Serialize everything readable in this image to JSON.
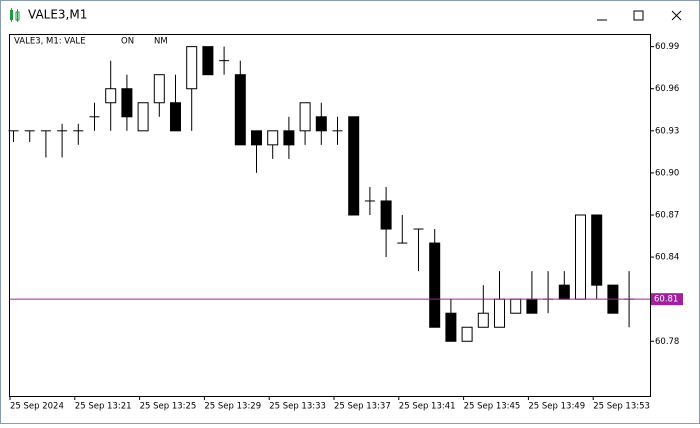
{
  "window": {
    "title": "VALE3,M1"
  },
  "chart_data": {
    "type": "candlestick",
    "title": "VALE3, M1:  VALE",
    "annotations": [
      "ON",
      "NM"
    ],
    "categories": [
      "25 Sep 2024",
      null,
      null,
      null,
      "25 Sep 13:21",
      null,
      null,
      null,
      "25 Sep 13:25",
      null,
      null,
      null,
      "25 Sep 13:29",
      null,
      null,
      null,
      "25 Sep 13:33",
      null,
      null,
      null,
      "25 Sep 13:37",
      null,
      null,
      null,
      "25 Sep 13:41",
      null,
      null,
      null,
      "25 Sep 13:45",
      null,
      null,
      null,
      "25 Sep 13:49",
      null,
      null,
      null,
      "25 Sep 13:53",
      null,
      null
    ],
    "open": [
      60.93,
      60.93,
      60.93,
      60.93,
      60.93,
      60.94,
      60.95,
      60.96,
      60.93,
      60.95,
      60.95,
      60.96,
      60.99,
      60.98,
      60.97,
      60.93,
      60.92,
      60.93,
      60.93,
      60.94,
      60.93,
      60.94,
      60.88,
      60.88,
      60.85,
      60.86,
      60.85,
      60.8,
      60.78,
      60.79,
      60.79,
      60.8,
      60.81,
      60.81,
      60.82,
      60.81,
      60.87,
      60.82,
      60.81
    ],
    "high": [
      60.93,
      60.93,
      60.93,
      60.935,
      60.935,
      60.95,
      60.98,
      60.97,
      60.95,
      60.97,
      60.97,
      60.99,
      60.99,
      60.99,
      60.98,
      60.93,
      60.93,
      60.94,
      60.95,
      60.95,
      60.94,
      60.94,
      60.89,
      60.89,
      60.87,
      60.86,
      60.86,
      60.81,
      60.79,
      60.82,
      60.83,
      60.81,
      60.83,
      60.83,
      60.83,
      60.87,
      60.87,
      60.82,
      60.83
    ],
    "low": [
      60.922,
      60.922,
      60.911,
      60.911,
      60.92,
      60.93,
      60.93,
      60.93,
      60.93,
      60.94,
      60.93,
      60.93,
      60.97,
      60.97,
      60.92,
      60.9,
      60.91,
      60.91,
      60.92,
      60.92,
      60.92,
      60.87,
      60.87,
      60.84,
      60.85,
      60.83,
      60.79,
      60.78,
      60.78,
      60.79,
      60.79,
      60.8,
      60.8,
      60.8,
      60.81,
      60.81,
      60.81,
      60.8,
      60.79
    ],
    "close": [
      60.93,
      60.93,
      60.93,
      60.93,
      60.93,
      60.94,
      60.96,
      60.94,
      60.95,
      60.97,
      60.93,
      60.99,
      60.97,
      60.98,
      60.92,
      60.92,
      60.93,
      60.92,
      60.95,
      60.93,
      60.93,
      60.87,
      60.88,
      60.86,
      60.85,
      60.86,
      60.79,
      60.78,
      60.79,
      60.8,
      60.81,
      60.81,
      60.8,
      60.81,
      60.81,
      60.87,
      60.82,
      60.8,
      60.81
    ],
    "up_color": "#ffffff",
    "down_color": "#000000",
    "line_color": "#000000",
    "ylim": [
      60.741,
      60.999
    ],
    "yticks": [
      60.78,
      60.84,
      60.87,
      {
        "value": 60.9,
        "label": "60.90"
      },
      60.93,
      60.96,
      60.99
    ],
    "price_line": {
      "value": 60.81,
      "color": "#a0209e"
    },
    "grid": false
  }
}
